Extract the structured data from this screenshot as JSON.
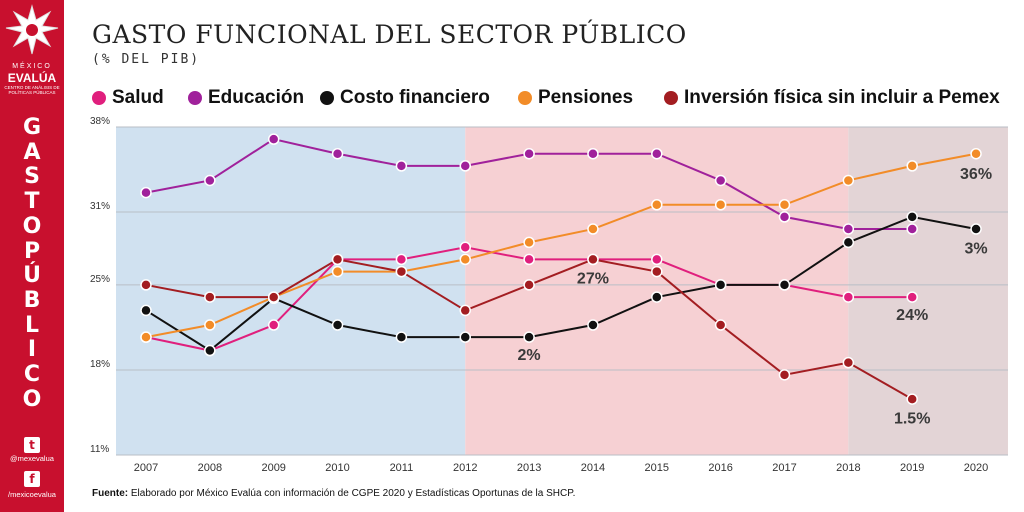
{
  "sidebar": {
    "brand_small": "MÉXICO",
    "brand_name": "EVALÚA",
    "brand_tagline": "CENTRO DE ANÁLISIS DE POLÍTICAS PÚBLICAS",
    "vertical_letters": [
      "G",
      "A",
      "S",
      "T",
      "O",
      "P",
      "Ú",
      "B",
      "L",
      "I",
      "C",
      "O"
    ],
    "twitter_handle": "@mexevalua",
    "facebook_handle": "/mexicoevalua",
    "background_color": "#c8102e"
  },
  "chart_data": {
    "type": "line",
    "title": "GASTO FUNCIONAL DEL SECTOR PÚBLICO",
    "subtitle": "(% DEL PIB)",
    "x": [
      "2007",
      "2008",
      "2009",
      "2010",
      "2011",
      "2012",
      "2013",
      "2014",
      "2015",
      "2016",
      "2017",
      "2018",
      "2019",
      "2020"
    ],
    "yticks": [
      {
        "label": "38%",
        "value": 38
      },
      {
        "label": "31%",
        "value": 31
      },
      {
        "label": "25%",
        "value": 25
      },
      {
        "label": "18%",
        "value": 18
      },
      {
        "label": "11%",
        "value": 11
      }
    ],
    "ylim": [
      11,
      38
    ],
    "grid": true,
    "legend_position": "top",
    "background_bands": [
      {
        "from": "2006.5",
        "to": "2012",
        "color": "#d0e1f0"
      },
      {
        "from": "2012",
        "to": "2018",
        "color": "#f6d0d3"
      },
      {
        "from": "2018",
        "to": "2020.5",
        "color": "#e3d4d6"
      }
    ],
    "series": [
      {
        "name": "Salud",
        "color": "#e01f7d",
        "values": [
          20.7,
          19.6,
          21.7,
          27.1,
          27.1,
          28.1,
          27.1,
          27.1,
          27.1,
          25.0,
          25.0,
          24.0,
          24.0,
          null
        ]
      },
      {
        "name": "Educación",
        "color": "#a0219b",
        "values": [
          32.6,
          33.6,
          37.0,
          35.8,
          34.8,
          34.8,
          35.8,
          35.8,
          35.8,
          33.6,
          30.6,
          29.6,
          29.6,
          null
        ]
      },
      {
        "name": "Costo financiero",
        "color": "#111111",
        "values": [
          22.9,
          19.6,
          23.9,
          21.7,
          20.7,
          20.7,
          20.7,
          21.7,
          24.0,
          25.0,
          25.0,
          28.5,
          30.6,
          29.6
        ]
      },
      {
        "name": "Pensiones",
        "color": "#f28c28",
        "values": [
          20.7,
          21.7,
          24.0,
          26.1,
          26.1,
          27.1,
          28.5,
          29.6,
          31.6,
          31.6,
          31.6,
          33.6,
          34.8,
          35.8
        ]
      },
      {
        "name": "Inversión física sin incluir a Pemex",
        "color": "#a31d21",
        "values": [
          25.0,
          24.0,
          24.0,
          27.1,
          26.1,
          22.9,
          25.0,
          27.1,
          26.1,
          21.7,
          17.6,
          18.6,
          15.6,
          null
        ]
      }
    ],
    "annotations": [
      {
        "text": "27%",
        "x": "2014",
        "y": 25.1
      },
      {
        "text": "2%",
        "x": "2013",
        "y": 18.8
      },
      {
        "text": "36%",
        "x": "2020",
        "y": 33.7
      },
      {
        "text": "3%",
        "x": "2020",
        "y": 27.6
      },
      {
        "text": "24%",
        "x": "2019",
        "y": 22.1
      },
      {
        "text": "1.5%",
        "x": "2019",
        "y": 13.6
      }
    ]
  },
  "source": {
    "label": "Fuente:",
    "text": " Elaborado por México Evalúa con información de CGPE 2020 y Estadísticas Oportunas de la SHCP."
  }
}
